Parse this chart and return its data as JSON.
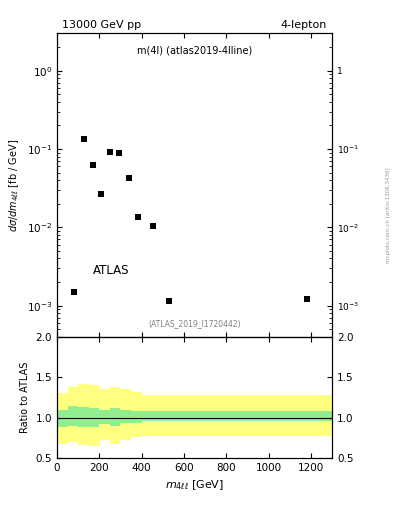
{
  "title_left": "13000 GeV pp",
  "title_right": "4-lepton",
  "main_label": "m(4l) (atlas2019-4lline)",
  "atlas_label": "ATLAS",
  "ref_label": "(ATLAS_2019_I1720442)",
  "right_label": "mcplots.cern.ch [arXiv:1306.3436]",
  "data_x": [
    80,
    130,
    170,
    210,
    250,
    295,
    340,
    385,
    455,
    530,
    1180
  ],
  "data_y": [
    0.0015,
    0.135,
    0.062,
    0.027,
    0.092,
    0.088,
    0.042,
    0.0135,
    0.0105,
    0.00115,
    0.0012
  ],
  "ylim_main": [
    0.0004,
    3.0
  ],
  "xlim": [
    0,
    1300
  ],
  "ylim_ratio": [
    0.5,
    2.0
  ],
  "x_edges": [
    0,
    50,
    100,
    150,
    200,
    250,
    300,
    350,
    400,
    500,
    700,
    1300
  ],
  "y_lo_yellow": [
    0.68,
    0.7,
    0.66,
    0.65,
    0.72,
    0.68,
    0.72,
    0.76,
    0.78,
    0.78,
    0.78
  ],
  "y_hi_yellow": [
    1.3,
    1.38,
    1.42,
    1.4,
    1.35,
    1.38,
    1.35,
    1.32,
    1.28,
    1.28,
    1.28
  ],
  "y_lo_green": [
    0.88,
    0.9,
    0.88,
    0.88,
    0.92,
    0.9,
    0.93,
    0.94,
    0.96,
    0.96,
    0.96
  ],
  "y_hi_green": [
    1.1,
    1.14,
    1.13,
    1.12,
    1.1,
    1.12,
    1.1,
    1.08,
    1.08,
    1.08,
    1.08
  ],
  "marker_color": "black",
  "marker_style": "s",
  "marker_size": 5,
  "green_color": "#90EE90",
  "yellow_color": "#FFFF80",
  "background_color": "white"
}
